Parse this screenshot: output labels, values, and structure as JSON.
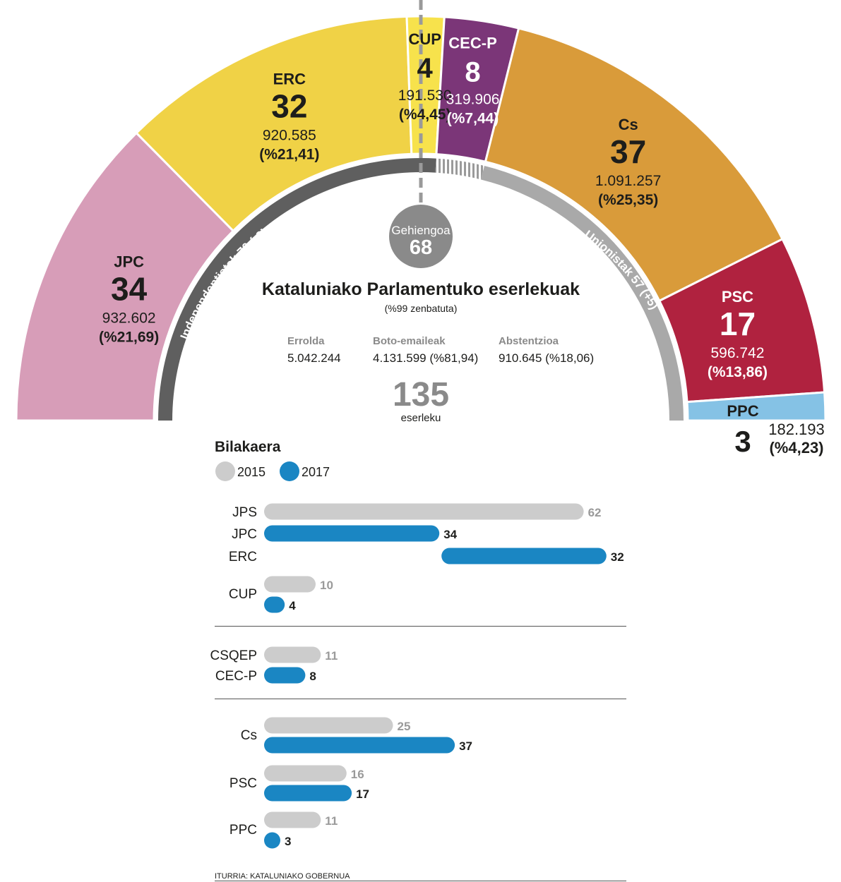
{
  "chart_data": [
    {
      "type": "pie",
      "title": "Kataluniako Parlamentuko eserlekuak",
      "subtitle": "(%99 zenbatuta)",
      "total_seats": "135",
      "total_seats_label": "eserleku",
      "majority_label": "Gehiengoa",
      "majority_value": "68",
      "stats": [
        {
          "label": "Errolda",
          "value": "5.042.244"
        },
        {
          "label": "Boto-emaileak",
          "value": "4.131.599 (%81,94)"
        },
        {
          "label": "Abstentzioa",
          "value": "910.645 (%18,06)"
        }
      ],
      "blocs": [
        {
          "label": "Independentistak 70 (-2)",
          "seats": 70
        },
        {
          "label": "Unionistak 57 (+5)",
          "seats": 57
        }
      ],
      "parties": [
        {
          "name": "JPC",
          "seats": 34,
          "seats_label": "34",
          "votes": "932.602",
          "pct": "(%21,69)",
          "color": "#d79db8"
        },
        {
          "name": "ERC",
          "seats": 32,
          "seats_label": "32",
          "votes": "920.585",
          "pct": "(%21,41)",
          "color": "#f0d246"
        },
        {
          "name": "CUP",
          "seats": 4,
          "seats_label": "4",
          "votes": "191.530",
          "pct": "(%4,45)",
          "color": "#f7e24c"
        },
        {
          "name": "CEC-P",
          "seats": 8,
          "seats_label": "8",
          "votes": "319.906",
          "pct": "(%7,44)",
          "color": "#7b3678"
        },
        {
          "name": "Cs",
          "seats": 37,
          "seats_label": "37",
          "votes": "1.091.257",
          "pct": "(%25,35)",
          "color": "#d99b3a"
        },
        {
          "name": "PSC",
          "seats": 17,
          "seats_label": "17",
          "votes": "596.742",
          "pct": "(%13,86)",
          "color": "#b0223f"
        },
        {
          "name": "PPC",
          "seats": 3,
          "seats_label": "3",
          "votes": "182.193",
          "pct": "(%4,23)",
          "color": "#85c2e5"
        }
      ]
    },
    {
      "type": "bar",
      "title": "Bilakaera",
      "legend": [
        {
          "name": "2015",
          "color": "#cccccc"
        },
        {
          "name": "2017",
          "color": "#1a86c3"
        }
      ],
      "groups": [
        [
          {
            "name": "JPS",
            "year": "2015",
            "value": 62
          },
          {
            "name": "JPC",
            "year": "2017",
            "value": 34
          },
          {
            "name": "ERC",
            "year": "2017",
            "value": 32
          },
          {
            "name": "CUP",
            "year": "2015",
            "value": 10
          },
          {
            "name": "",
            "year": "2017",
            "value": 4
          }
        ],
        [
          {
            "name": "CSQEP",
            "year": "2015",
            "value": 11
          },
          {
            "name": "CEC-P",
            "year": "2017",
            "value": 8
          }
        ],
        [
          {
            "name": "Cs",
            "year": "2015",
            "value": 25
          },
          {
            "name": "",
            "year": "2017",
            "value": 37
          },
          {
            "name": "PSC",
            "year": "2015",
            "value": 16
          },
          {
            "name": "",
            "year": "2017",
            "value": 17
          },
          {
            "name": "PPC",
            "year": "2015",
            "value": 11
          },
          {
            "name": "",
            "year": "2017",
            "value": 3
          }
        ]
      ]
    }
  ],
  "source": "ITURRIA: KATALUNIAKO GOBERNUA"
}
